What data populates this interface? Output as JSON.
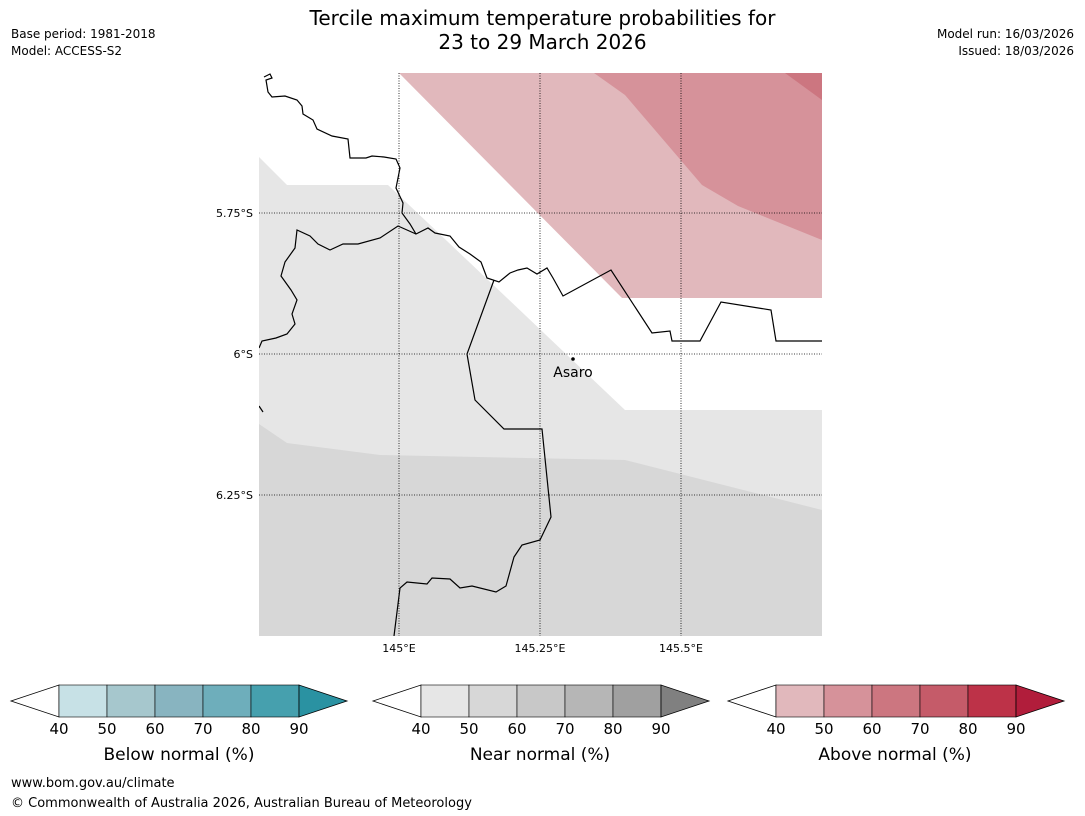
{
  "header": {
    "title_line1": "Tercile maximum temperature probabilities for",
    "title_line2": "23 to 29 March 2026",
    "base_period": "Base period: 1981-2018",
    "model": "Model: ACCESS-S2",
    "model_run": "Model run: 16/03/2026",
    "issued": "Issued: 18/03/2026"
  },
  "map": {
    "lat_labels": [
      "5.75°S",
      "6°S",
      "6.25°S"
    ],
    "lon_labels": [
      "145°E",
      "145.25°E",
      "145.5°E"
    ],
    "place": "Asaro"
  },
  "colorbars": [
    {
      "label": "Below normal (%)",
      "ticks": [
        "40",
        "50",
        "60",
        "70",
        "80",
        "90"
      ],
      "colors": [
        "#c7e1e6",
        "#a6c7cd",
        "#88b4c0",
        "#6eaebb",
        "#46a0ae",
        "#2a92a2"
      ],
      "low_color": "#ffffff"
    },
    {
      "label": "Near normal (%)",
      "ticks": [
        "40",
        "50",
        "60",
        "70",
        "80",
        "90"
      ],
      "colors": [
        "#e6e6e6",
        "#d7d7d7",
        "#c8c8c8",
        "#b6b6b6",
        "#a0a0a0",
        "#808080"
      ],
      "low_color": "#ffffff"
    },
    {
      "label": "Above normal (%)",
      "ticks": [
        "40",
        "50",
        "60",
        "70",
        "80",
        "90"
      ],
      "colors": [
        "#e1b8bc",
        "#d6929a",
        "#cc7680",
        "#c55b69",
        "#bd3248",
        "#b11d3b"
      ],
      "low_color": "#ffffff"
    }
  ],
  "footer": {
    "url": "www.bom.gov.au/climate",
    "copyright": "© Commonwealth of Australia 2026, Australian Bureau of Meteorology"
  }
}
